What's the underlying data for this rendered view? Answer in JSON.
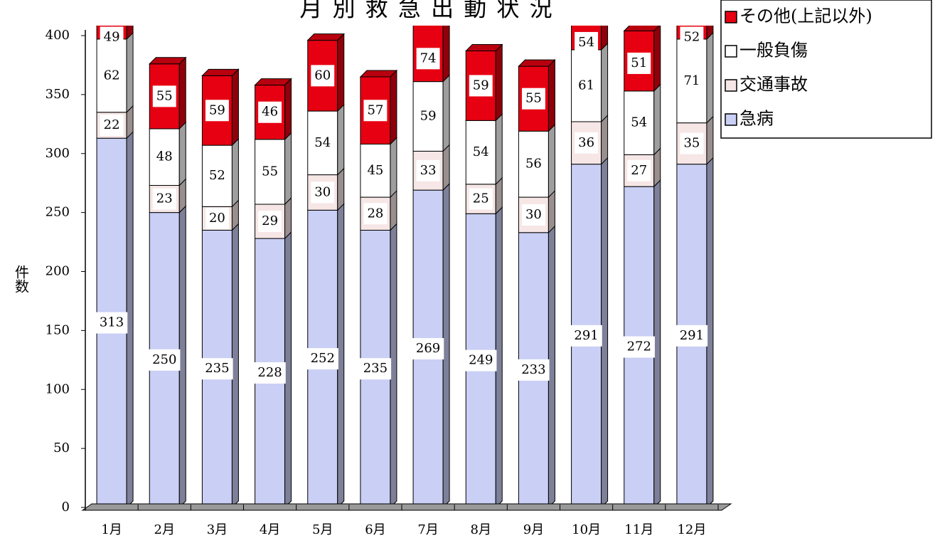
{
  "chart_data": {
    "type": "stacked-bar-3d",
    "title": "月 別 救 急 出 動 状 況",
    "y_label": "件数",
    "categories": [
      "1月",
      "2月",
      "3月",
      "4月",
      "5月",
      "6月",
      "7月",
      "8月",
      "9月",
      "10月",
      "11月",
      "12月"
    ],
    "series": [
      {
        "name": "急病",
        "color": "#c9cff5",
        "values": [
          313,
          250,
          235,
          228,
          252,
          235,
          269,
          249,
          233,
          291,
          272,
          291
        ]
      },
      {
        "name": "交通事故",
        "color": "#f6e6e6",
        "values": [
          22,
          23,
          20,
          29,
          30,
          28,
          33,
          25,
          30,
          36,
          27,
          35
        ]
      },
      {
        "name": "一般負傷",
        "color": "#ffffff",
        "values": [
          62,
          48,
          52,
          55,
          54,
          45,
          59,
          54,
          56,
          61,
          54,
          71
        ]
      },
      {
        "name": "その他(上記以外)",
        "color": "#e60012",
        "values": [
          49,
          55,
          59,
          46,
          60,
          57,
          74,
          59,
          55,
          54,
          51,
          52
        ]
      }
    ],
    "ylim": [
      0,
      400
    ],
    "yticks": [
      0,
      50,
      100,
      150,
      200,
      250,
      300,
      350,
      400
    ],
    "legend": "top-right",
    "data_labels": true
  }
}
